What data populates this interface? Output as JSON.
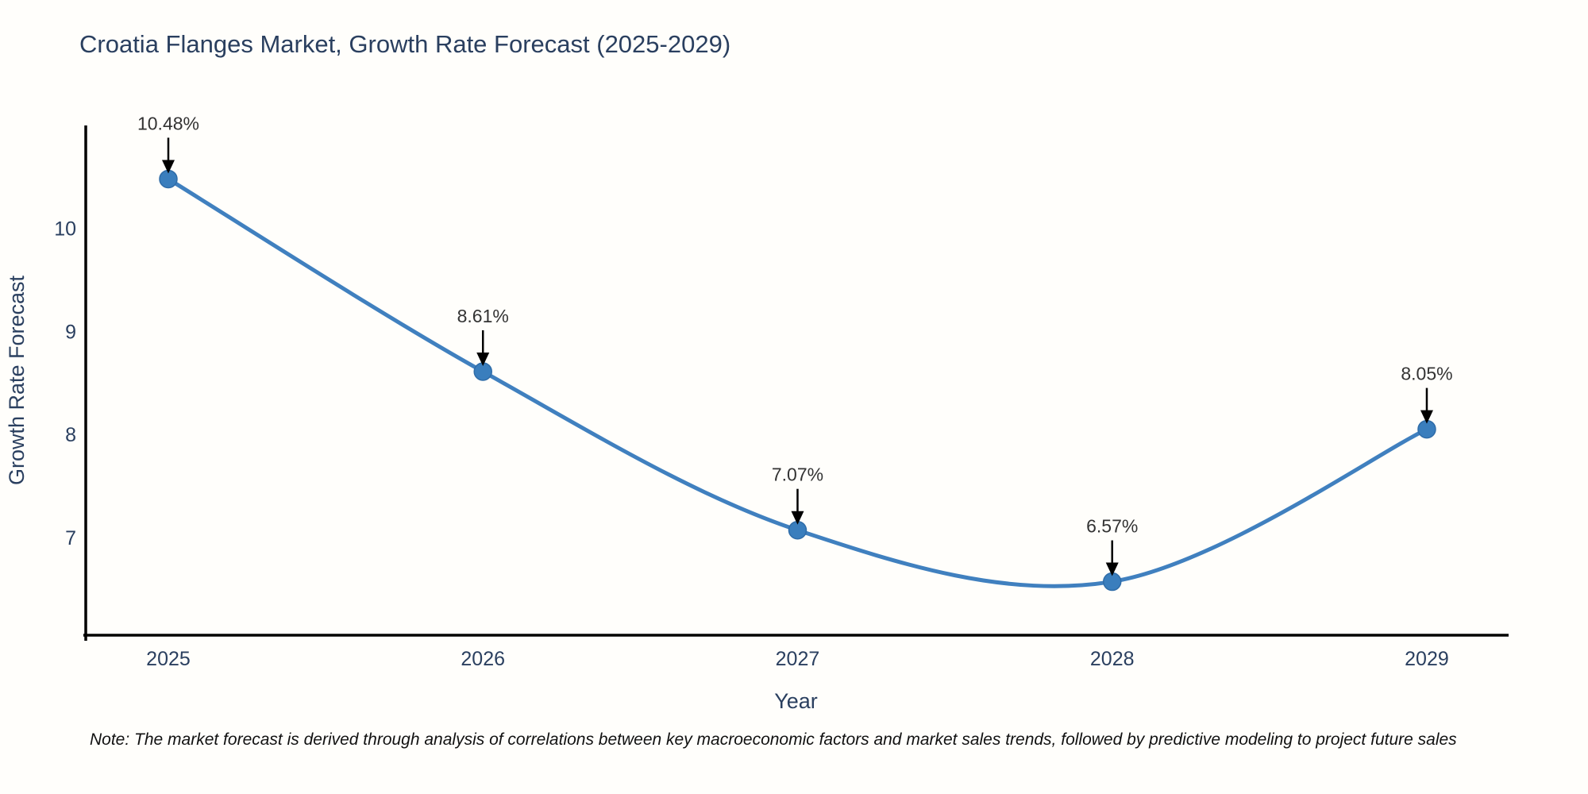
{
  "title": "Croatia Flanges Market, Growth Rate Forecast (2025-2029)",
  "note": "Note: The market forecast is derived through analysis of correlations between key macroeconomic factors and market sales trends, followed by predictive modeling to project future sales",
  "colors": {
    "line": "#4080bf",
    "marker_fill": "#3a7ebd",
    "marker_edge": "#2f6ca8",
    "axis_line": "#000000",
    "title_text": "#2a3f5f",
    "tick_text": "#2a3f5f",
    "axis_label_text": "#2a3f5f",
    "annotation_text": "#333333",
    "annotation_arrow": "#000000",
    "background": "#fffefb"
  },
  "chart_data": {
    "type": "line",
    "title": "Croatia Flanges Market, Growth Rate Forecast (2025-2029)",
    "xlabel": "Year",
    "ylabel": "Growth Rate Forecast",
    "x": [
      2025,
      2026,
      2027,
      2028,
      2029
    ],
    "series": [
      {
        "name": "Growth Rate Forecast",
        "values": [
          10.48,
          8.61,
          7.07,
          6.57,
          8.05
        ]
      }
    ],
    "point_labels": [
      "10.48%",
      "8.61%",
      "7.07%",
      "6.57%",
      "8.05%"
    ],
    "xticks": [
      "2025",
      "2026",
      "2027",
      "2028",
      "2029"
    ],
    "yticks": [
      7,
      8,
      9,
      10
    ],
    "xlim": [
      2024.73,
      2029.26
    ],
    "ylim": [
      6.05,
      11.0
    ],
    "line_shape": "spline",
    "grid": false,
    "legend_position": "none",
    "marker_style": "circle",
    "annotation_style": "arrow-down"
  }
}
